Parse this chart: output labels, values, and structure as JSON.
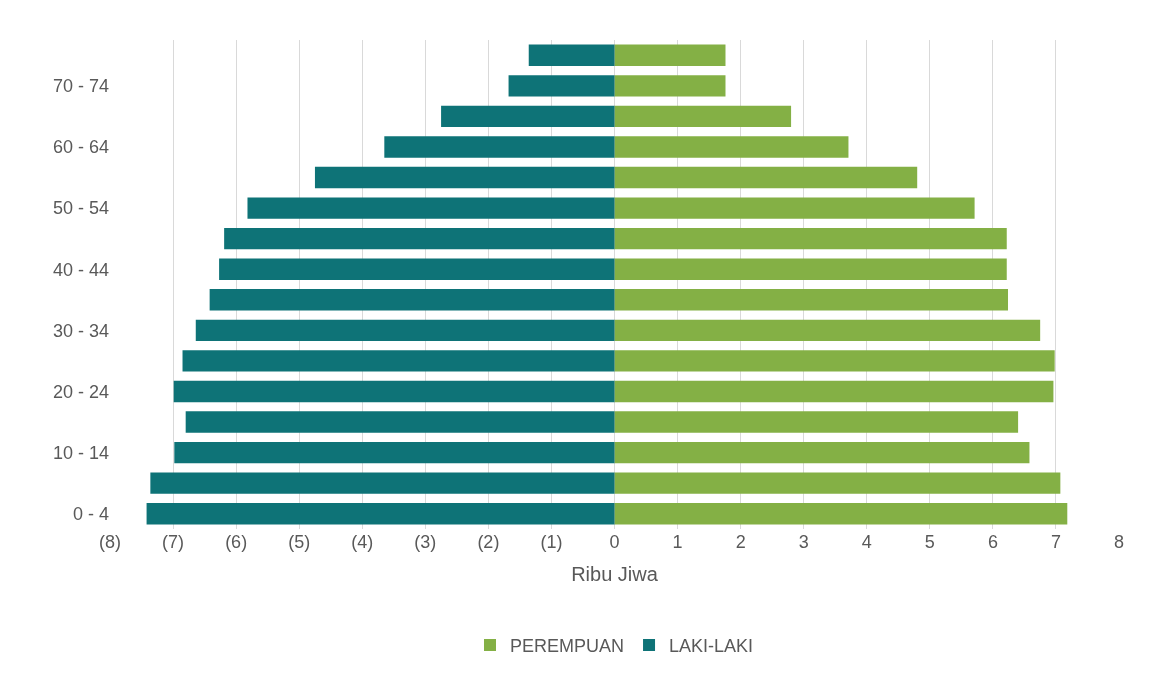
{
  "chart_data": {
    "type": "bar",
    "orientation": "horizontal",
    "stacked": true,
    "xlabel": "Ribu Jiwa",
    "categories": [
      null,
      "70 - 74",
      null,
      "60 - 64",
      null,
      "50 - 54",
      null,
      "40 - 44",
      null,
      "30 - 34",
      null,
      "20 - 24",
      null,
      "10 - 14",
      null,
      "0 - 4"
    ],
    "series": [
      {
        "name": "PEREMPUAN",
        "color": "#84b045",
        "values": [
          1.76,
          1.76,
          2.8,
          3.71,
          4.8,
          5.71,
          6.22,
          6.22,
          6.24,
          6.75,
          6.98,
          6.96,
          6.4,
          6.58,
          7.07,
          7.18
        ]
      },
      {
        "name": "LAKI-LAKI",
        "color": "#0e7377",
        "values": [
          -1.36,
          -1.68,
          -2.75,
          -3.65,
          -4.75,
          -5.82,
          -6.19,
          -6.27,
          -6.42,
          -6.64,
          -6.85,
          -6.99,
          -6.8,
          -6.98,
          -7.36,
          -7.42
        ]
      }
    ],
    "xlim": [
      -8,
      8
    ],
    "xticks": [
      {
        "value": -8,
        "label": "(8)"
      },
      {
        "value": -7,
        "label": "(7)"
      },
      {
        "value": -6,
        "label": "(6)"
      },
      {
        "value": -5,
        "label": "(5)"
      },
      {
        "value": -4,
        "label": "(4)"
      },
      {
        "value": -3,
        "label": "(3)"
      },
      {
        "value": -2,
        "label": "(2)"
      },
      {
        "value": -1,
        "label": "(1)"
      },
      0,
      1,
      2,
      3,
      4,
      5,
      6,
      7,
      8
    ],
    "grid": "x",
    "legend": "bottom"
  }
}
